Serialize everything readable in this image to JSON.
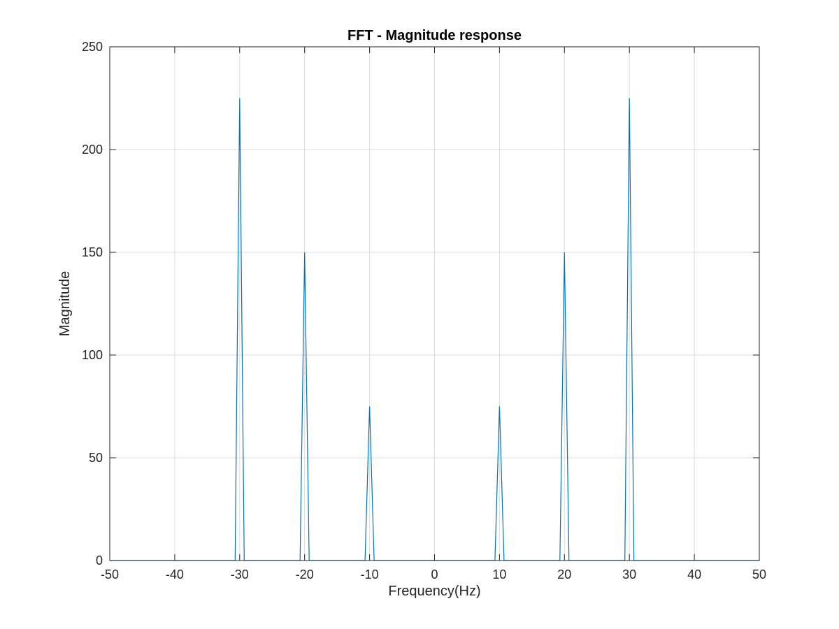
{
  "chart_data": {
    "type": "line",
    "title": "FFT - Magnitude response",
    "xlabel": "Frequency(Hz)",
    "ylabel": "Magnitude",
    "xlim": [
      -50,
      50
    ],
    "ylim": [
      0,
      250
    ],
    "x_ticks": [
      -50,
      -40,
      -30,
      -20,
      -10,
      0,
      10,
      20,
      30,
      40,
      50
    ],
    "y_ticks": [
      0,
      50,
      100,
      150,
      200,
      250
    ],
    "x_tick_labels": [
      "-50",
      "-40",
      "-30",
      "-20",
      "-10",
      "0",
      "10",
      "20",
      "30",
      "40",
      "50"
    ],
    "y_tick_labels": [
      "0",
      "50",
      "100",
      "150",
      "200",
      "250"
    ],
    "grid": true,
    "line_color": "#0072BD",
    "series": [
      {
        "x": [
          -50,
          -30.7,
          -30,
          -29.3,
          -20.7,
          -20,
          -19.3,
          -10.7,
          -10,
          -9.3,
          9.3,
          10,
          10.7,
          19.3,
          20,
          20.7,
          29.3,
          30,
          30.7,
          50
        ],
        "y": [
          0,
          0,
          225,
          0,
          0,
          150,
          0,
          0,
          75,
          0,
          0,
          75,
          0,
          0,
          150,
          0,
          0,
          225,
          0,
          0
        ]
      }
    ]
  }
}
